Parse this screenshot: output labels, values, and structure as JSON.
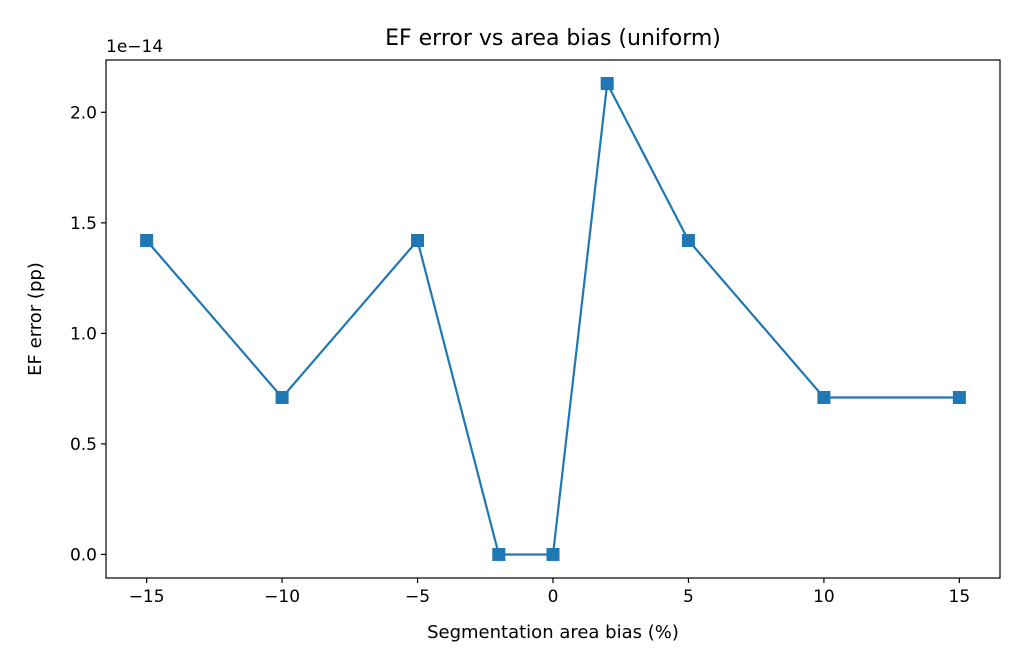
{
  "chart_data": {
    "type": "line",
    "title": "EF error vs area bias (uniform)",
    "xlabel": "Segmentation area bias (%)",
    "ylabel": "EF error (pp)",
    "y_offset_label": "1e−14",
    "x": [
      -15,
      -10,
      -5,
      -2,
      0,
      2,
      5,
      10,
      15
    ],
    "series": [
      {
        "values": [
          1.42,
          0.71,
          1.42,
          0.0,
          0.0,
          2.13,
          1.42,
          0.71,
          0.71
        ],
        "color": "#1f77b4",
        "marker": "square"
      }
    ],
    "xlim": [
      -16.5,
      16.5
    ],
    "ylim": [
      -0.1065,
      2.2365
    ],
    "xticks": [
      -15,
      -10,
      -5,
      0,
      5,
      10,
      15
    ],
    "xtick_labels": [
      "−15",
      "−10",
      "−5",
      "0",
      "5",
      "10",
      "15"
    ],
    "yticks": [
      0.0,
      0.5,
      1.0,
      1.5,
      2.0
    ],
    "ytick_labels": [
      "0.0",
      "0.5",
      "1.0",
      "1.5",
      "2.0"
    ],
    "grid": false,
    "legend": "none"
  }
}
